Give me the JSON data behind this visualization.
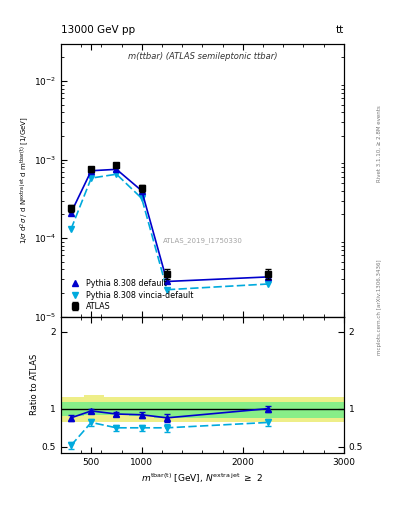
{
  "title_left": "13000 GeV pp",
  "title_right": "tt",
  "subplot_title": "m(ttbar) (ATLAS semileptonic ttbar)",
  "watermark": "ATLAS_2019_I1750330",
  "right_label_top": "Rivet 3.1.10, ≥ 2.8M events",
  "right_label_bottom": "mcplots.cern.ch [arXiv:1306.3436]",
  "x_data": [
    300,
    500,
    750,
    1000,
    1250,
    2250
  ],
  "atlas_y": [
    0.00024,
    0.00075,
    0.00085,
    0.00043,
    3.5e-05,
    3.5e-05
  ],
  "atlas_yerr_lo": [
    2.5e-05,
    5e-05,
    5.5e-05,
    4e-05,
    5e-06,
    5e-06
  ],
  "atlas_yerr_hi": [
    2.5e-05,
    5e-05,
    5.5e-05,
    4e-05,
    5e-06,
    5e-06
  ],
  "pythia_default_y": [
    0.00021,
    0.00072,
    0.00075,
    0.0004,
    2.8e-05,
    3.2e-05
  ],
  "pythia_vincia_y": [
    0.00013,
    0.00058,
    0.00065,
    0.00032,
    2.2e-05,
    2.6e-05
  ],
  "ratio_pythia_default": [
    0.88,
    0.97,
    0.93,
    0.92,
    0.88,
    1.0
  ],
  "ratio_pythia_vincia": [
    0.52,
    0.82,
    0.75,
    0.75,
    0.75,
    0.82
  ],
  "ratio_default_err": [
    0.04,
    0.03,
    0.03,
    0.04,
    0.05,
    0.04
  ],
  "ratio_vincia_err": [
    0.04,
    0.04,
    0.04,
    0.04,
    0.05,
    0.05
  ],
  "band_x_edges": [
    200,
    425,
    625,
    875,
    1125,
    1750,
    3000
  ],
  "green_band_lo": [
    0.9,
    0.92,
    0.92,
    0.9,
    0.88,
    0.88,
    0.88
  ],
  "green_band_hi": [
    1.08,
    1.08,
    1.08,
    1.08,
    1.08,
    1.08,
    1.08
  ],
  "yellow_band_lo": [
    0.82,
    0.82,
    0.82,
    0.82,
    0.82,
    0.82,
    0.82
  ],
  "yellow_band_hi": [
    1.15,
    1.18,
    1.15,
    1.15,
    1.15,
    1.15,
    1.15
  ],
  "atlas_color": "#000000",
  "pythia_default_color": "#0000CC",
  "pythia_vincia_color": "#00AADD",
  "green_color": "#88EE88",
  "yellow_color": "#EEEE88",
  "xlim": [
    200,
    3000
  ],
  "ylim_main": [
    1e-05,
    0.03
  ],
  "ylim_ratio": [
    0.42,
    2.2
  ],
  "yticks_ratio": [
    0.5,
    1.0,
    2.0
  ]
}
